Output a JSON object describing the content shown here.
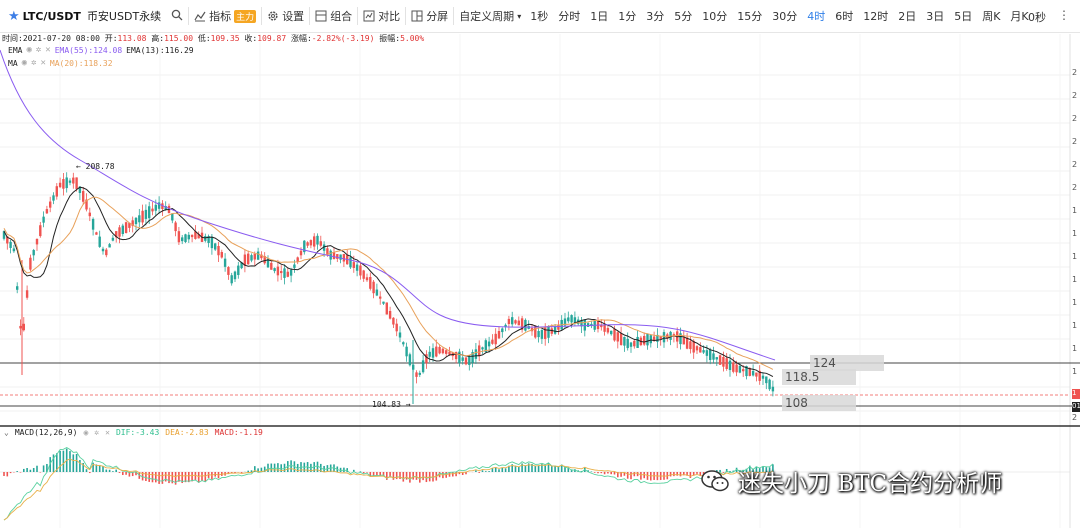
{
  "toolbar": {
    "symbol": "LTC/USDT",
    "exchange": "币安USDT永续",
    "indicators_label": "指标",
    "indicators_badge": "主力",
    "settings_label": "设置",
    "combo_label": "组合",
    "compare_label": "对比",
    "split_label": "分屏",
    "custom_period_label": "自定义周期",
    "timeframes": [
      "1秒",
      "分时",
      "1日",
      "1分",
      "3分",
      "5分",
      "10分",
      "15分",
      "30分",
      "4时",
      "6时",
      "12时",
      "2日",
      "3日",
      "5日",
      "周K",
      "月K"
    ],
    "active_timeframe": "4时",
    "countdown": "0秒"
  },
  "ohlc": {
    "time_label": "时间:",
    "time": "2021-07-20 08:00",
    "open_label": "开:",
    "open": "113.08",
    "high_label": "高:",
    "high": "115.00",
    "low_label": "低:",
    "low": "109.35",
    "close_label": "收:",
    "close": "109.87",
    "change_label": "涨幅:",
    "change": "-2.82%(-3.19)",
    "amplitude_label": "振幅:",
    "amplitude": "5.00%"
  },
  "indicators": {
    "ema": {
      "name": "EMA",
      "ema55": "EMA(55):124.08",
      "ema13": "EMA(13):116.29"
    },
    "ma": {
      "name": "MA",
      "ma20": "MA(20):118.32"
    },
    "macd": {
      "name": "MACD(12,26,9)",
      "dif": "DIF:-3.43",
      "dea": "DEA:-2.83",
      "macd": "MACD:-1.19"
    }
  },
  "annotations": {
    "high_marker": "← 208.78",
    "low_marker": "104.83 →",
    "level_124": "124",
    "level_118": "118.5",
    "level_108": "108"
  },
  "right_axis_labels": [
    "2",
    "2",
    "2",
    "2",
    "2",
    "2",
    "1",
    "1",
    "1",
    "1",
    "1",
    "1",
    "1",
    "1",
    "1",
    "2"
  ],
  "price_tags": [
    "1",
    "01"
  ],
  "watermark": "迷失小刀 BTC合约分析师",
  "colors": {
    "up": "#26a69a",
    "down": "#ef5350",
    "ema55": "#8a5cf0",
    "ema13": "#222222",
    "ma20": "#e8a15a",
    "active": "#2f7fe8",
    "macd_dif": "#5ad1a0",
    "macd_dea": "#e8b04a"
  }
}
